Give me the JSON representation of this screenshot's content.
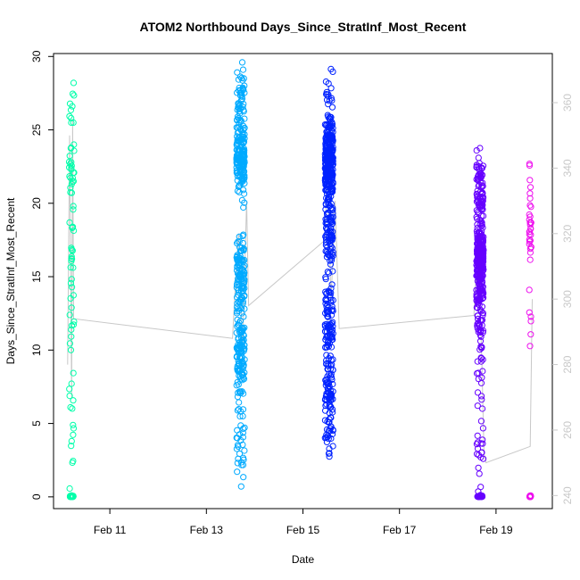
{
  "chart_data": {
    "type": "scatter",
    "title": "ATOM2 Northbound Days_Since_StratInf_Most_Recent",
    "xlabel": "Date",
    "ylabel": "Days_Since_StratInf_Most_Recent",
    "x_ticks": [
      "Feb 11",
      "Feb 13",
      "Feb 15",
      "Feb 17",
      "Feb 19"
    ],
    "x_range": [
      "2014-02-09 20:00",
      "2014-02-20 04:00"
    ],
    "y_ticks": [
      0,
      5,
      10,
      15,
      20,
      25,
      30
    ],
    "ylim": [
      -0.8,
      30.2
    ],
    "y2_ticks": [
      240,
      260,
      280,
      300,
      320,
      340,
      360
    ],
    "y2lim": [
      236,
      375
    ],
    "grid": false,
    "marker": "open-circle",
    "groups": [
      {
        "center": "2014-02-10 05:00",
        "spread_hours": 2.5,
        "color": "#00FFAA",
        "count": 120,
        "clusters": [
          [
            0,
            0.35
          ],
          [
            22,
            0.25
          ],
          [
            17,
            0.1
          ],
          [
            12,
            0.07
          ],
          [
            6,
            0.05
          ],
          [
            26,
            0.1
          ],
          [
            3,
            0.04
          ],
          [
            14,
            0.04
          ]
        ]
      },
      {
        "center": "2014-02-13 17:00",
        "spread_hours": 4,
        "color": "#00AAFF",
        "count": 460,
        "clusters": [
          [
            23,
            0.35
          ],
          [
            15,
            0.25
          ],
          [
            10,
            0.2
          ],
          [
            27,
            0.12
          ],
          [
            3,
            0.04
          ],
          [
            6,
            0.04
          ]
        ]
      },
      {
        "center": "2014-02-15 13:00",
        "spread_hours": 4,
        "color": "#0022FF",
        "count": 560,
        "clusters": [
          [
            23,
            0.45
          ],
          [
            18,
            0.2
          ],
          [
            12,
            0.15
          ],
          [
            8,
            0.1
          ],
          [
            5,
            0.06
          ],
          [
            27,
            0.04
          ]
        ]
      },
      {
        "center": "2014-02-18 16:00",
        "spread_hours": 3.5,
        "color": "#6600FF",
        "count": 480,
        "clusters": [
          [
            16,
            0.5
          ],
          [
            21,
            0.2
          ],
          [
            12,
            0.12
          ],
          [
            0,
            0.12
          ],
          [
            8,
            0.03
          ],
          [
            3,
            0.03
          ]
        ]
      },
      {
        "center": "2014-02-19 17:00",
        "spread_hours": 1,
        "color": "#EE11EE",
        "count": 65,
        "clusters": [
          [
            0,
            0.4
          ],
          [
            18,
            0.35
          ],
          [
            12,
            0.15
          ],
          [
            22,
            0.1
          ]
        ]
      }
    ],
    "secondary_line": {
      "color": "#C8C8C8",
      "axis": "y2",
      "points": [
        [
          "2014-02-10 03:00",
          280
        ],
        [
          "2014-02-10 04:00",
          350
        ],
        [
          "2014-02-10 05:00",
          270
        ],
        [
          "2014-02-10 05:30",
          355
        ],
        [
          "2014-02-10 06:00",
          294
        ],
        [
          "2014-02-13 13:00",
          288
        ],
        [
          "2014-02-13 14:00",
          300
        ],
        [
          "2014-02-13 16:00",
          320
        ],
        [
          "2014-02-13 18:00",
          285
        ],
        [
          "2014-02-13 20:00",
          330
        ],
        [
          "2014-02-13 21:00",
          298
        ],
        [
          "2014-02-15 11:00",
          318
        ],
        [
          "2014-02-15 12:00",
          340
        ],
        [
          "2014-02-15 14:00",
          300
        ],
        [
          "2014-02-15 16:00",
          330
        ],
        [
          "2014-02-15 18:00",
          291
        ],
        [
          "2014-02-18 13:00",
          295
        ],
        [
          "2014-02-18 15:00",
          320
        ],
        [
          "2014-02-18 17:00",
          280
        ],
        [
          "2014-02-18 18:00",
          253
        ],
        [
          "2014-02-18 19:00",
          250
        ],
        [
          "2014-02-19 17:00",
          255
        ],
        [
          "2014-02-19 18:00",
          300
        ]
      ]
    }
  }
}
